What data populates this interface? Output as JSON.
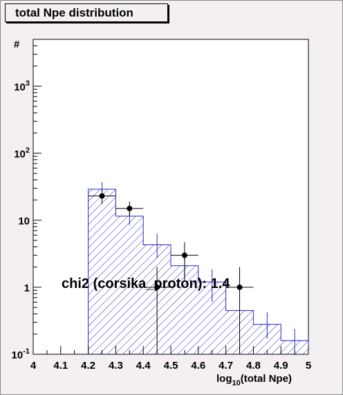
{
  "chart_data": {
    "type": "bar",
    "title": "total Npe distribution",
    "xlabel": "log10(total Npe)",
    "ylabel": "#",
    "xlim": [
      4.0,
      5.0
    ],
    "ylim": [
      0.1,
      5000
    ],
    "yscale": "log",
    "x_ticks": [
      "4",
      "4.1",
      "4.2",
      "4.3",
      "4.4",
      "4.5",
      "4.6",
      "4.7",
      "4.8",
      "4.9",
      "5"
    ],
    "y_ticks": [
      {
        "base": "10",
        "exp": "-1",
        "value": 0.1
      },
      {
        "base": "1",
        "exp": "",
        "value": 1
      },
      {
        "base": "10",
        "exp": "",
        "value": 10
      },
      {
        "base": "10",
        "exp": "2",
        "value": 100
      },
      {
        "base": "10",
        "exp": "3",
        "value": 1000
      }
    ],
    "annotation": "chi2 (corsika_proton): 1.4",
    "series": [
      {
        "kind": "histogram",
        "color": "#2424c8",
        "fill": "hatched",
        "bins": [
          {
            "x0": 4.2,
            "x1": 4.3,
            "y": 29,
            "err_lo": 22,
            "err_hi": 37
          },
          {
            "x0": 4.3,
            "x1": 4.4,
            "y": 11.5,
            "err_lo": 8.5,
            "err_hi": 15
          },
          {
            "x0": 4.4,
            "x1": 4.5,
            "y": 4.3,
            "err_lo": 2.7,
            "err_hi": 6.3
          },
          {
            "x0": 4.5,
            "x1": 4.6,
            "y": 2.1,
            "err_lo": 1.25,
            "err_hi": 3.2
          },
          {
            "x0": 4.6,
            "x1": 4.7,
            "y": 1.2,
            "err_lo": 0.6,
            "err_hi": 1.85
          },
          {
            "x0": 4.7,
            "x1": 4.8,
            "y": 0.45,
            "err_lo": 0.2,
            "err_hi": 0.75
          },
          {
            "x0": 4.8,
            "x1": 4.9,
            "y": 0.28,
            "err_lo": 0.17,
            "err_hi": 0.42
          },
          {
            "x0": 4.9,
            "x1": 5.0,
            "y": 0.16,
            "err_lo": 0.1,
            "err_hi": 0.24
          }
        ]
      },
      {
        "kind": "points",
        "color": "#000000",
        "points": [
          {
            "x": 4.25,
            "y": 23,
            "x0": 4.2,
            "x1": 4.3,
            "err_lo": 17.5,
            "err_hi": 29
          },
          {
            "x": 4.35,
            "y": 15,
            "x0": 4.3,
            "x1": 4.4,
            "err_lo": 11.5,
            "err_hi": 19
          },
          {
            "x": 4.45,
            "y": 1.0,
            "x0": 4.4,
            "x1": 4.5,
            "err_lo": 0.1,
            "err_hi": 2.0
          },
          {
            "x": 4.55,
            "y": 3.0,
            "x0": 4.5,
            "x1": 4.6,
            "err_lo": 1.3,
            "err_hi": 4.7
          },
          {
            "x": 4.75,
            "y": 1.0,
            "x0": 4.7,
            "x1": 4.8,
            "err_lo": 0.1,
            "err_hi": 2.0
          }
        ]
      }
    ]
  }
}
